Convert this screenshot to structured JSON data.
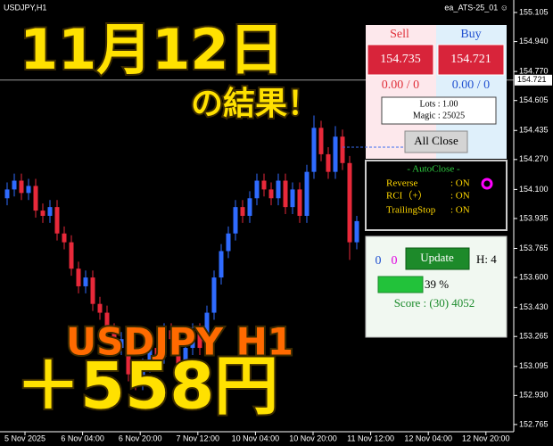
{
  "header": {
    "symbol": "USDJPY,H1",
    "expert": "ea_ATS-25_01 ☺"
  },
  "overlay": {
    "date": "11月12日",
    "result": "の結果！",
    "pair": "USDJPY H1",
    "profit": "＋558円"
  },
  "chart_data": {
    "type": "candlestick",
    "ohlc": [
      [
        154.05,
        154.14,
        154.01,
        154.1
      ],
      [
        154.1,
        154.19,
        154.06,
        154.15
      ],
      [
        154.15,
        154.19,
        154.04,
        154.08
      ],
      [
        154.08,
        154.16,
        154.04,
        154.12
      ],
      [
        154.12,
        154.16,
        153.94,
        153.98
      ],
      [
        153.98,
        154.02,
        153.91,
        153.95
      ],
      [
        153.95,
        154.04,
        153.91,
        154.0
      ],
      [
        154.0,
        154.04,
        153.81,
        153.85
      ],
      [
        153.85,
        153.89,
        153.76,
        153.8
      ],
      [
        153.8,
        153.84,
        153.61,
        153.65
      ],
      [
        153.65,
        153.69,
        153.51,
        153.55
      ],
      [
        153.55,
        153.64,
        153.51,
        153.6
      ],
      [
        153.6,
        153.64,
        153.41,
        153.45
      ],
      [
        153.45,
        153.49,
        153.36,
        153.4
      ],
      [
        153.4,
        153.44,
        153.26,
        153.3
      ],
      [
        153.3,
        153.34,
        153.16,
        153.2
      ],
      [
        153.2,
        153.29,
        153.16,
        153.25
      ],
      [
        153.25,
        153.29,
        153.01,
        153.05
      ],
      [
        153.05,
        153.09,
        152.96,
        153.0
      ],
      [
        153.0,
        153.14,
        152.96,
        153.1
      ],
      [
        153.1,
        153.24,
        153.06,
        153.2
      ],
      [
        153.2,
        153.24,
        153.11,
        153.15
      ],
      [
        153.15,
        153.34,
        153.11,
        153.3
      ],
      [
        153.3,
        153.34,
        153.21,
        153.25
      ],
      [
        153.25,
        153.29,
        153.06,
        153.1
      ],
      [
        153.1,
        153.24,
        153.06,
        153.2
      ],
      [
        153.2,
        153.34,
        153.16,
        153.3
      ],
      [
        153.3,
        153.34,
        153.16,
        153.2
      ],
      [
        153.2,
        153.44,
        153.16,
        153.4
      ],
      [
        153.4,
        153.64,
        153.36,
        153.6
      ],
      [
        153.6,
        153.79,
        153.56,
        153.75
      ],
      [
        153.75,
        153.89,
        153.71,
        153.85
      ],
      [
        153.85,
        154.04,
        153.81,
        154.0
      ],
      [
        154.0,
        154.04,
        153.91,
        153.95
      ],
      [
        153.95,
        154.09,
        153.91,
        154.05
      ],
      [
        154.05,
        154.19,
        154.01,
        154.15
      ],
      [
        154.15,
        154.19,
        154.06,
        154.1
      ],
      [
        154.1,
        154.14,
        154.01,
        154.05
      ],
      [
        154.05,
        154.19,
        154.01,
        154.15
      ],
      [
        154.15,
        154.19,
        153.96,
        154.0
      ],
      [
        154.0,
        154.14,
        153.96,
        154.1
      ],
      [
        154.1,
        154.14,
        153.91,
        153.95
      ],
      [
        153.95,
        154.24,
        153.91,
        154.2
      ],
      [
        154.2,
        154.52,
        154.16,
        154.45
      ],
      [
        154.45,
        154.49,
        154.26,
        154.3
      ],
      [
        154.3,
        154.34,
        154.16,
        154.2
      ],
      [
        154.2,
        154.46,
        154.16,
        154.4
      ],
      [
        154.4,
        154.44,
        154.21,
        154.25
      ],
      [
        154.25,
        154.29,
        153.7,
        153.8
      ],
      [
        153.8,
        153.95,
        153.76,
        153.92
      ]
    ],
    "up_color": "#2f6bff",
    "down_color": "#e8293a",
    "ylim": [
      152.724,
      155.176
    ],
    "yticks": [
      155.105,
      {
        "value": 154.94,
        "label": "154.940"
      },
      {
        "value": 154.77,
        "label": "154.770"
      },
      154.605,
      154.435,
      {
        "value": 154.27,
        "label": "154.270"
      },
      {
        "value": 154.1,
        "label": "154.100"
      },
      153.935,
      153.765,
      {
        "value": 153.6,
        "label": "153.600"
      },
      {
        "value": 153.43,
        "label": "153.430"
      },
      153.265,
      153.095,
      {
        "value": 152.93,
        "label": "152.930"
      },
      152.765
    ],
    "x_labels": [
      "5 Nov 2025",
      "6 Nov 04:00",
      "6 Nov 20:00",
      "7 Nov 12:00",
      "10 Nov 04:00",
      "10 Nov 20:00",
      "11 Nov 12:00",
      "12 Nov 04:00",
      "12 Nov 20:00"
    ],
    "current_price": 154.721
  },
  "panel": {
    "sell": {
      "label": "Sell",
      "price": "154.735",
      "pl": "0.00 / 0"
    },
    "buy": {
      "label": "Buy",
      "price": "154.721",
      "pl": "0.00 / 0"
    },
    "lots": "Lots : 1.00",
    "magic": "Magic : 25025",
    "all_close": "All Close",
    "autoclose": {
      "title": "- AutoClose -",
      "rows": [
        [
          "Reverse",
          ": ON"
        ],
        [
          "RCI（+）",
          ": ON"
        ],
        [
          "TrailingStop",
          ": ON"
        ]
      ]
    },
    "status": {
      "count_a": "0",
      "count_b": "0",
      "update": "Update",
      "hours": "H: 4",
      "progress": "39 %",
      "score": "Score : (30) 4052"
    }
  }
}
